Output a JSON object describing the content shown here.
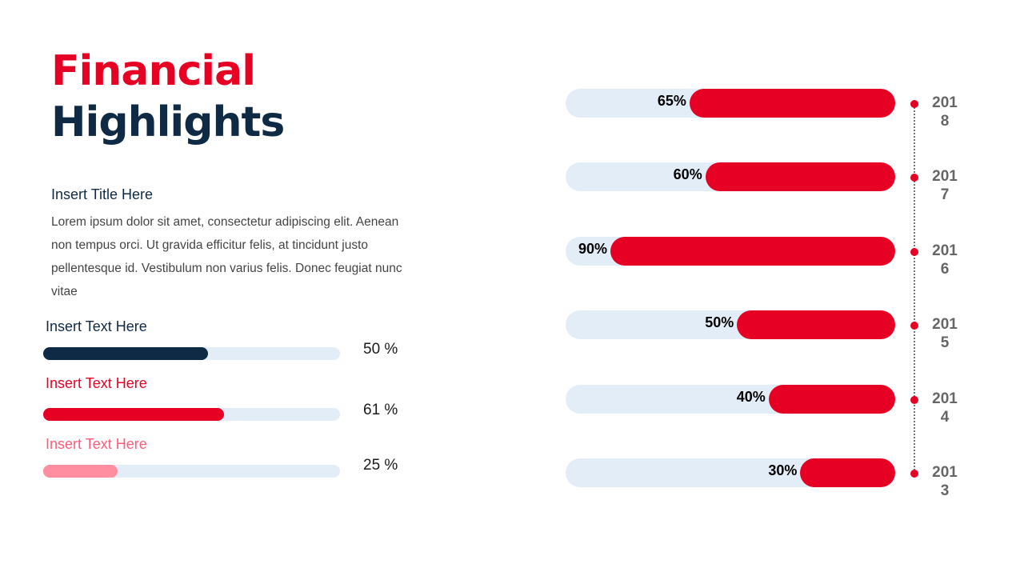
{
  "header": {
    "title_line1": "Financial",
    "title_line2": "Highlights"
  },
  "intro": {
    "subtitle": "Insert Title Here",
    "body": "Lorem ipsum dolor sit amet, consectetur adipiscing elit. Aenean non tempus orci. Ut gravida efficitur felis, at tincidunt justo pellentesque id. Vestibulum non varius felis. Donec feugiat nunc vitae"
  },
  "progress_items": [
    {
      "label": "Insert Text Here",
      "value": 50,
      "value_text": "50 %",
      "color": "#0f2a44",
      "label_color": "#0f2a44"
    },
    {
      "label": "Insert Text Here",
      "value": 61,
      "value_text": "61 %",
      "color": "#e60023",
      "label_color": "#e60023"
    },
    {
      "label": "Insert Text Here",
      "value": 25,
      "value_text": "25 %",
      "color": "#ff8fa0",
      "label_color": "#ff5a78"
    }
  ],
  "colors": {
    "accent": "#e60023",
    "navy": "#0f2a44",
    "track": "#e3edf8",
    "year_text": "#666666"
  },
  "chart_data": {
    "type": "bar",
    "orientation": "horizontal",
    "title": "",
    "categories": [
      "2018",
      "2017",
      "2016",
      "2015",
      "2014",
      "2013"
    ],
    "values": [
      65,
      60,
      90,
      50,
      40,
      30
    ],
    "labels": [
      "65%",
      "60%",
      "90%",
      "50%",
      "40%",
      "30%"
    ],
    "xlim": [
      0,
      100
    ],
    "unit": "%",
    "bar_direction": "right-to-left",
    "grid": false,
    "legend": "none"
  }
}
